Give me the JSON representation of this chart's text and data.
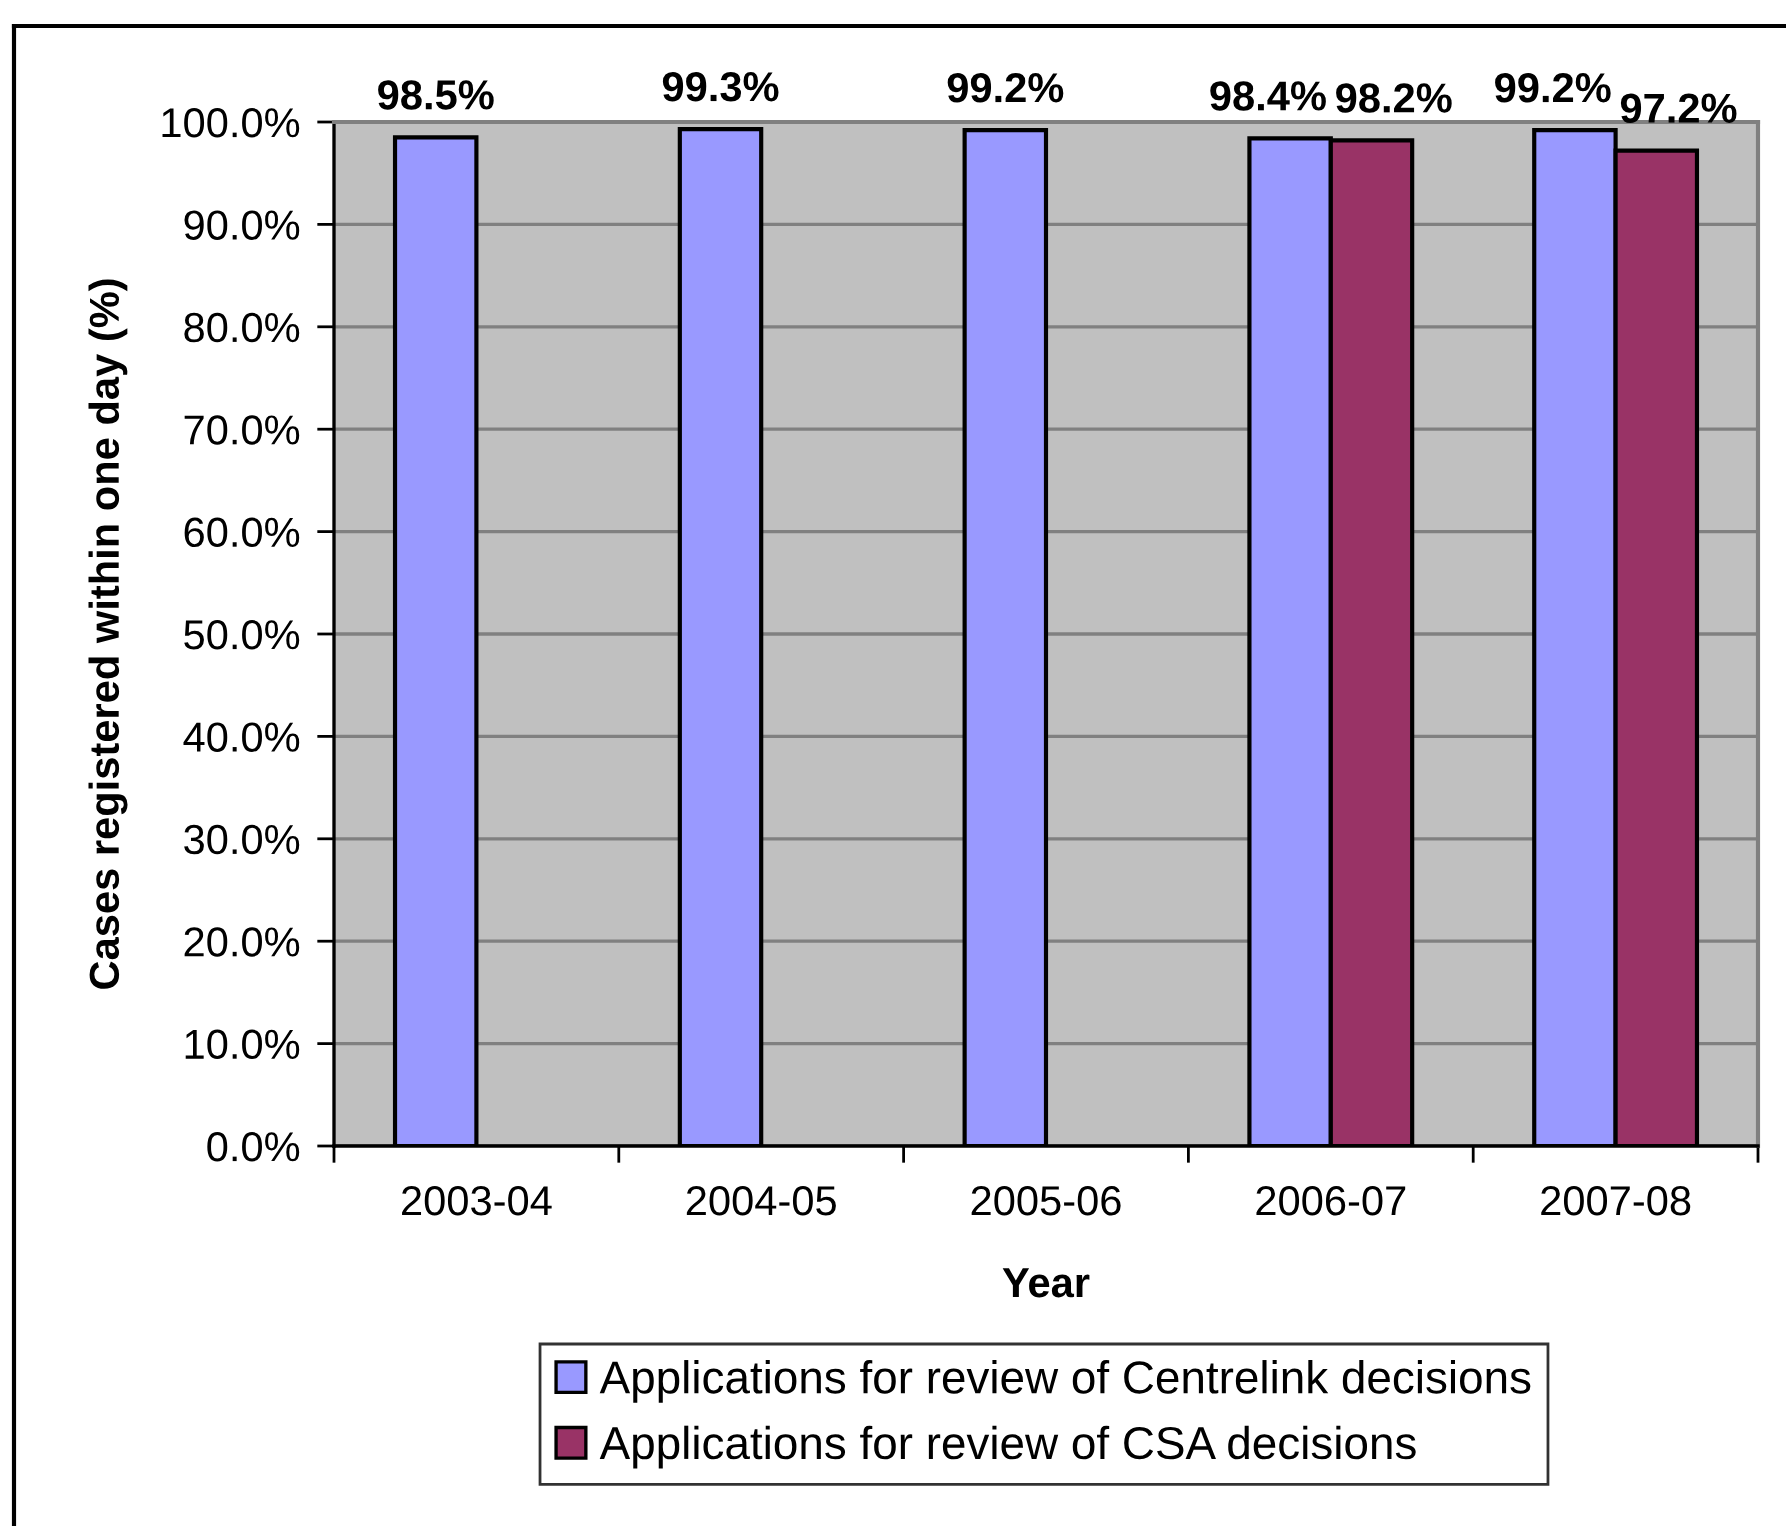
{
  "chart_data": {
    "type": "bar",
    "xlabel": "Year",
    "ylabel": "Cases registered within one day (%)",
    "categories": [
      "2003-04",
      "2004-05",
      "2005-06",
      "2006-07",
      "2007-08"
    ],
    "series": [
      {
        "name": "Applications for review of Centrelink decisions",
        "color": "#9999ff",
        "values": [
          98.5,
          99.3,
          99.2,
          98.4,
          99.2
        ],
        "value_labels": [
          "98.5%",
          "99.3%",
          "99.2%",
          "98.4%",
          "99.2%"
        ]
      },
      {
        "name": "Applications for review of CSA decisions",
        "color": "#993366",
        "values": [
          null,
          null,
          null,
          98.2,
          97.2
        ],
        "value_labels": [
          null,
          null,
          null,
          "98.2%",
          "97.2%"
        ]
      }
    ],
    "ylim": [
      0,
      100
    ],
    "yticks": [
      {
        "value": 0,
        "label": "0.0%"
      },
      {
        "value": 10,
        "label": "10.0%"
      },
      {
        "value": 20,
        "label": "20.0%"
      },
      {
        "value": 30,
        "label": "30.0%"
      },
      {
        "value": 40,
        "label": "40.0%"
      },
      {
        "value": 50,
        "label": "50.0%"
      },
      {
        "value": 60,
        "label": "60.0%"
      },
      {
        "value": 70,
        "label": "70.0%"
      },
      {
        "value": 80,
        "label": "80.0%"
      },
      {
        "value": 90,
        "label": "90.0%"
      },
      {
        "value": 100,
        "label": "100.0%"
      }
    ],
    "grid": "y",
    "legend": "bottom"
  }
}
